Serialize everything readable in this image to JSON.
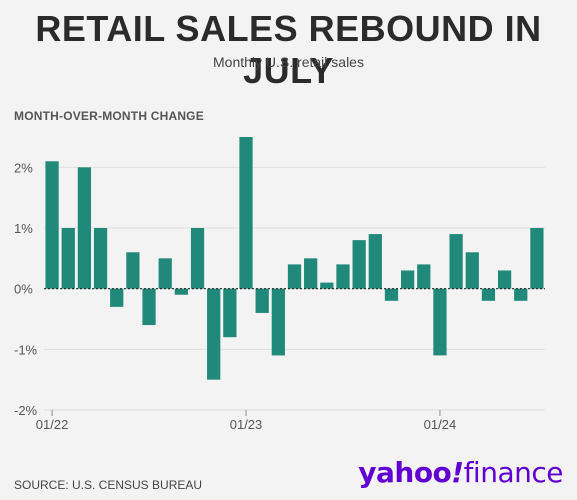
{
  "header": {
    "title": "RETAIL SALES REBOUND IN JULY",
    "subtitle": "Monthly U.S. retail sales",
    "section_label": "MONTH-OVER-MONTH CHANGE"
  },
  "footer": {
    "source": "SOURCE: U.S. CENSUS BUREAU",
    "logo_part1": "yahoo",
    "logo_bang": "!",
    "logo_part2": "finance"
  },
  "colors": {
    "bar": "#20897a",
    "zero_line": "#222222",
    "grid": "#dddddd",
    "logo": "#6001d2"
  },
  "chart_data": {
    "type": "bar",
    "title": "RETAIL SALES REBOUND IN JULY",
    "subtitle": "Monthly U.S. retail sales",
    "ylabel": "MONTH-OVER-MONTH CHANGE",
    "ylim": [
      -2,
      2.5
    ],
    "y_ticks": [
      {
        "value": 2,
        "label": "2%"
      },
      {
        "value": 1,
        "label": "1%"
      },
      {
        "value": 0,
        "label": "0%"
      },
      {
        "value": -1,
        "label": "-1%"
      },
      {
        "value": -2,
        "label": "-2%"
      }
    ],
    "x_ticks": [
      {
        "index": 0,
        "label": "01/22"
      },
      {
        "index": 12,
        "label": "01/23"
      },
      {
        "index": 24,
        "label": "01/24"
      }
    ],
    "grid": true,
    "categories": [
      "01/22",
      "02/22",
      "03/22",
      "04/22",
      "05/22",
      "06/22",
      "07/22",
      "08/22",
      "09/22",
      "10/22",
      "11/22",
      "12/22",
      "01/23",
      "02/23",
      "03/23",
      "04/23",
      "05/23",
      "06/23",
      "07/23",
      "08/23",
      "09/23",
      "10/23",
      "11/23",
      "12/23",
      "01/24",
      "02/24",
      "03/24",
      "04/24",
      "05/24",
      "06/24",
      "07/24"
    ],
    "values": [
      2.1,
      1.0,
      2.0,
      1.0,
      -0.3,
      0.6,
      -0.6,
      0.5,
      -0.1,
      1.0,
      -1.5,
      -0.8,
      2.5,
      -0.4,
      -1.1,
      0.4,
      0.5,
      0.1,
      0.4,
      0.8,
      0.9,
      -0.2,
      0.3,
      0.4,
      -1.1,
      0.9,
      0.6,
      -0.2,
      0.3,
      -0.2,
      1.0
    ]
  }
}
